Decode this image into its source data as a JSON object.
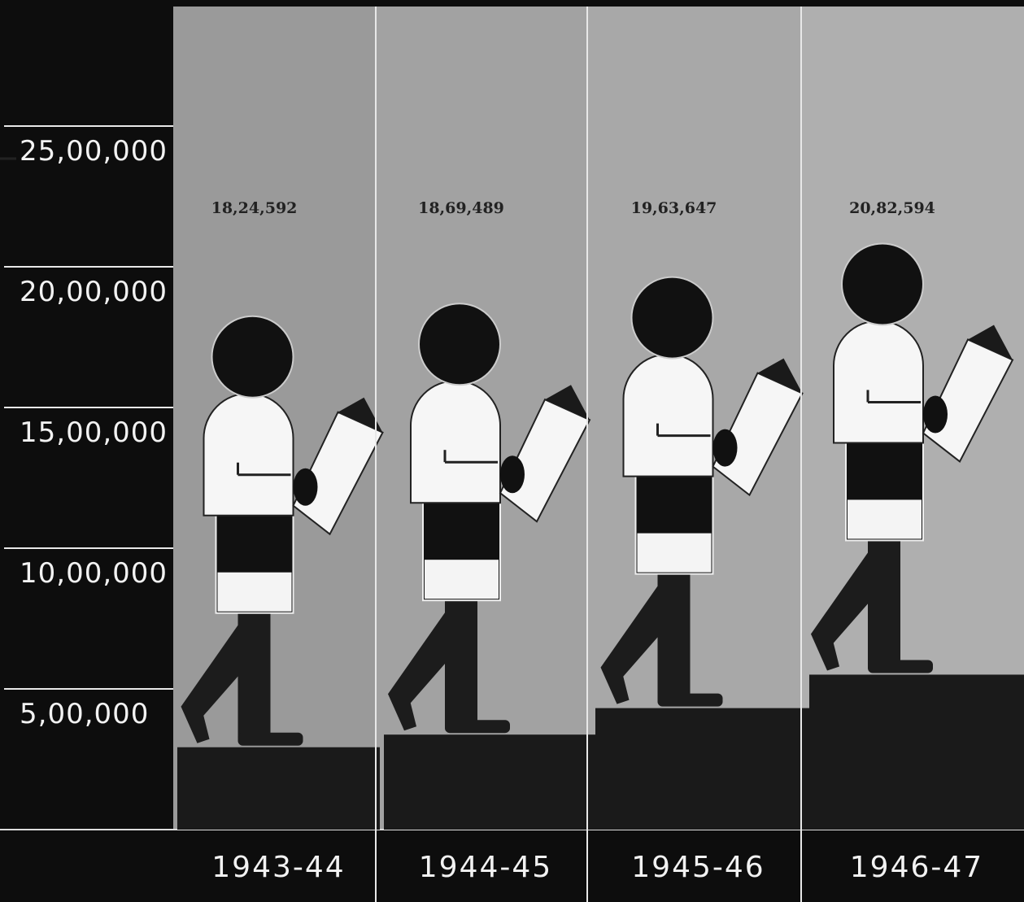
{
  "chart_data": {
    "type": "pictogram",
    "categories": [
      "1943-44",
      "1944-45",
      "1945-46",
      "1946-47"
    ],
    "values": [
      1824592,
      1869489,
      1963647,
      2082594
    ],
    "value_labels": [
      "18,24,592",
      "18,69,489",
      "19,63,647",
      "20,82,594"
    ],
    "ylim": [
      0,
      2925000
    ],
    "yticks": [
      {
        "value": 500000,
        "label": "5,00,000"
      },
      {
        "value": 1000000,
        "label": "10,00,000"
      },
      {
        "value": 1500000,
        "label": "15,00,000"
      },
      {
        "value": 2000000,
        "label": "20,00,000"
      },
      {
        "value": 2500000,
        "label": "25,00,000"
      }
    ]
  }
}
